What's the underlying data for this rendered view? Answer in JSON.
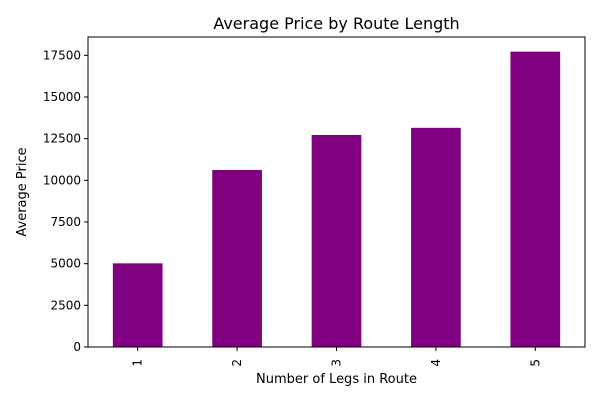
{
  "chart_data": {
    "type": "bar",
    "title": "Average Price by Route Length",
    "xlabel": "Number of Legs in Route",
    "ylabel": "Average Price",
    "categories": [
      "1",
      "2",
      "3",
      "4",
      "5"
    ],
    "values": [
      5020,
      10620,
      12720,
      13150,
      17720
    ],
    "ylim": [
      0,
      18600
    ],
    "yticks": [
      0,
      2500,
      5000,
      7500,
      10000,
      12500,
      15000,
      17500
    ],
    "ytick_labels": [
      "0",
      "2500",
      "5000",
      "7500",
      "10000",
      "12500",
      "15000",
      "17500"
    ],
    "xtick_rotation": "vertical",
    "bar_color": "#800080",
    "grid": false,
    "legend": "none"
  }
}
